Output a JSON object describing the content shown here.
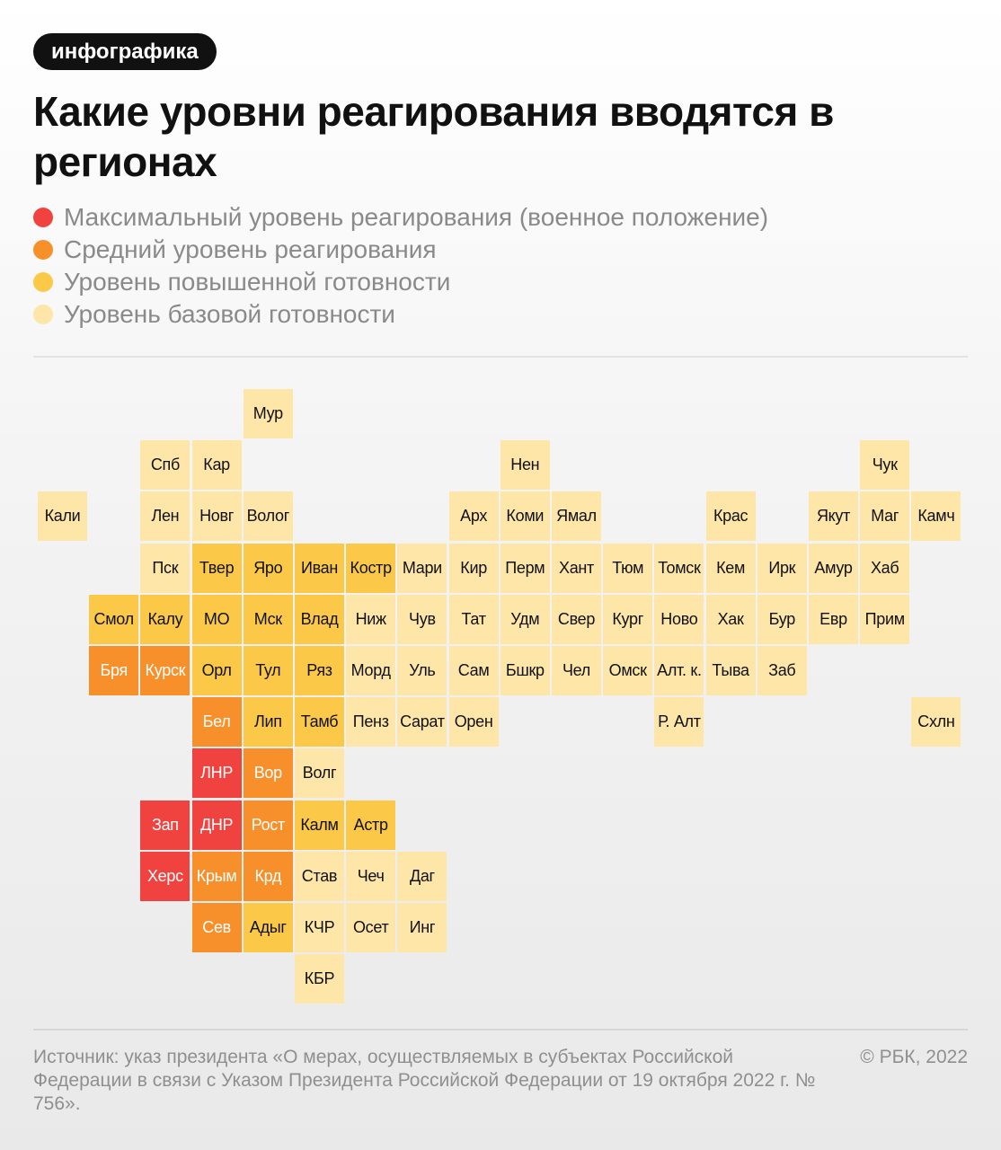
{
  "badge": "инфографика",
  "title": "Какие уровни реагирования вводятся в регионах",
  "legend": [
    {
      "key": "max",
      "label": "Максимальный уровень реагирования (военное положение)",
      "color": "#f0433f"
    },
    {
      "key": "mid",
      "label": "Средний уровень реагирования",
      "color": "#f7902a"
    },
    {
      "key": "high",
      "label": "Уровень повышенной готовности",
      "color": "#fbc947"
    },
    {
      "key": "base",
      "label": "Уровень базовой готовности",
      "color": "#fde6a7"
    }
  ],
  "colors": {
    "max": "#f0433f",
    "mid": "#f7902a",
    "high": "#fbc947",
    "base": "#fde6a7"
  },
  "text_colors": {
    "max": "#ffffff",
    "mid": "#ffffff",
    "high": "#111111",
    "base": "#111111"
  },
  "regions": [
    {
      "label": "Мур",
      "level": "base",
      "row": 0,
      "col": 4
    },
    {
      "label": "Спб",
      "level": "base",
      "row": 1,
      "col": 2
    },
    {
      "label": "Кар",
      "level": "base",
      "row": 1,
      "col": 3
    },
    {
      "label": "Нен",
      "level": "base",
      "row": 1,
      "col": 9
    },
    {
      "label": "Чук",
      "level": "base",
      "row": 1,
      "col": 16
    },
    {
      "label": "Кали",
      "level": "base",
      "row": 2,
      "col": 0
    },
    {
      "label": "Лен",
      "level": "base",
      "row": 2,
      "col": 2
    },
    {
      "label": "Новг",
      "level": "base",
      "row": 2,
      "col": 3
    },
    {
      "label": "Волог",
      "level": "base",
      "row": 2,
      "col": 4
    },
    {
      "label": "Арх",
      "level": "base",
      "row": 2,
      "col": 8
    },
    {
      "label": "Коми",
      "level": "base",
      "row": 2,
      "col": 9
    },
    {
      "label": "Ямал",
      "level": "base",
      "row": 2,
      "col": 10
    },
    {
      "label": "Крас",
      "level": "base",
      "row": 2,
      "col": 13
    },
    {
      "label": "Якут",
      "level": "base",
      "row": 2,
      "col": 15
    },
    {
      "label": "Маг",
      "level": "base",
      "row": 2,
      "col": 16
    },
    {
      "label": "Камч",
      "level": "base",
      "row": 2,
      "col": 17
    },
    {
      "label": "Пск",
      "level": "base",
      "row": 3,
      "col": 2
    },
    {
      "label": "Твер",
      "level": "high",
      "row": 3,
      "col": 3
    },
    {
      "label": "Яро",
      "level": "high",
      "row": 3,
      "col": 4
    },
    {
      "label": "Иван",
      "level": "high",
      "row": 3,
      "col": 5
    },
    {
      "label": "Костр",
      "level": "high",
      "row": 3,
      "col": 6
    },
    {
      "label": "Мари",
      "level": "base",
      "row": 3,
      "col": 7
    },
    {
      "label": "Кир",
      "level": "base",
      "row": 3,
      "col": 8
    },
    {
      "label": "Перм",
      "level": "base",
      "row": 3,
      "col": 9
    },
    {
      "label": "Хант",
      "level": "base",
      "row": 3,
      "col": 10
    },
    {
      "label": "Тюм",
      "level": "base",
      "row": 3,
      "col": 11
    },
    {
      "label": "Томск",
      "level": "base",
      "row": 3,
      "col": 12
    },
    {
      "label": "Кем",
      "level": "base",
      "row": 3,
      "col": 13
    },
    {
      "label": "Ирк",
      "level": "base",
      "row": 3,
      "col": 14
    },
    {
      "label": "Амур",
      "level": "base",
      "row": 3,
      "col": 15
    },
    {
      "label": "Хаб",
      "level": "base",
      "row": 3,
      "col": 16
    },
    {
      "label": "Смол",
      "level": "high",
      "row": 4,
      "col": 1
    },
    {
      "label": "Калу",
      "level": "high",
      "row": 4,
      "col": 2
    },
    {
      "label": "МО",
      "level": "high",
      "row": 4,
      "col": 3
    },
    {
      "label": "Мск",
      "level": "high",
      "row": 4,
      "col": 4
    },
    {
      "label": "Влад",
      "level": "high",
      "row": 4,
      "col": 5
    },
    {
      "label": "Ниж",
      "level": "base",
      "row": 4,
      "col": 6
    },
    {
      "label": "Чув",
      "level": "base",
      "row": 4,
      "col": 7
    },
    {
      "label": "Тат",
      "level": "base",
      "row": 4,
      "col": 8
    },
    {
      "label": "Удм",
      "level": "base",
      "row": 4,
      "col": 9
    },
    {
      "label": "Свер",
      "level": "base",
      "row": 4,
      "col": 10
    },
    {
      "label": "Кург",
      "level": "base",
      "row": 4,
      "col": 11
    },
    {
      "label": "Ново",
      "level": "base",
      "row": 4,
      "col": 12
    },
    {
      "label": "Хак",
      "level": "base",
      "row": 4,
      "col": 13
    },
    {
      "label": "Бур",
      "level": "base",
      "row": 4,
      "col": 14
    },
    {
      "label": "Евр",
      "level": "base",
      "row": 4,
      "col": 15
    },
    {
      "label": "Прим",
      "level": "base",
      "row": 4,
      "col": 16
    },
    {
      "label": "Бря",
      "level": "mid",
      "row": 5,
      "col": 1
    },
    {
      "label": "Курск",
      "level": "mid",
      "row": 5,
      "col": 2
    },
    {
      "label": "Орл",
      "level": "high",
      "row": 5,
      "col": 3
    },
    {
      "label": "Тул",
      "level": "high",
      "row": 5,
      "col": 4
    },
    {
      "label": "Ряз",
      "level": "high",
      "row": 5,
      "col": 5
    },
    {
      "label": "Морд",
      "level": "base",
      "row": 5,
      "col": 6
    },
    {
      "label": "Уль",
      "level": "base",
      "row": 5,
      "col": 7
    },
    {
      "label": "Сам",
      "level": "base",
      "row": 5,
      "col": 8
    },
    {
      "label": "Бшкр",
      "level": "base",
      "row": 5,
      "col": 9
    },
    {
      "label": "Чел",
      "level": "base",
      "row": 5,
      "col": 10
    },
    {
      "label": "Омск",
      "level": "base",
      "row": 5,
      "col": 11
    },
    {
      "label": "Алт. к.",
      "level": "base",
      "row": 5,
      "col": 12
    },
    {
      "label": "Тыва",
      "level": "base",
      "row": 5,
      "col": 13
    },
    {
      "label": "Заб",
      "level": "base",
      "row": 5,
      "col": 14
    },
    {
      "label": "Бел",
      "level": "mid",
      "row": 6,
      "col": 3
    },
    {
      "label": "Лип",
      "level": "high",
      "row": 6,
      "col": 4
    },
    {
      "label": "Тамб",
      "level": "high",
      "row": 6,
      "col": 5
    },
    {
      "label": "Пенз",
      "level": "base",
      "row": 6,
      "col": 6
    },
    {
      "label": "Сарат",
      "level": "base",
      "row": 6,
      "col": 7
    },
    {
      "label": "Орен",
      "level": "base",
      "row": 6,
      "col": 8
    },
    {
      "label": "Р. Алт",
      "level": "base",
      "row": 6,
      "col": 12
    },
    {
      "label": "Схлн",
      "level": "base",
      "row": 6,
      "col": 17
    },
    {
      "label": "ЛНР",
      "level": "max",
      "row": 7,
      "col": 3
    },
    {
      "label": "Вор",
      "level": "mid",
      "row": 7,
      "col": 4
    },
    {
      "label": "Волг",
      "level": "base",
      "row": 7,
      "col": 5
    },
    {
      "label": "Зап",
      "level": "max",
      "row": 8,
      "col": 2
    },
    {
      "label": "ДНР",
      "level": "max",
      "row": 8,
      "col": 3
    },
    {
      "label": "Рост",
      "level": "mid",
      "row": 8,
      "col": 4
    },
    {
      "label": "Калм",
      "level": "high",
      "row": 8,
      "col": 5
    },
    {
      "label": "Астр",
      "level": "high",
      "row": 8,
      "col": 6
    },
    {
      "label": "Херс",
      "level": "max",
      "row": 9,
      "col": 2
    },
    {
      "label": "Крым",
      "level": "mid",
      "row": 9,
      "col": 3
    },
    {
      "label": "Крд",
      "level": "mid",
      "row": 9,
      "col": 4
    },
    {
      "label": "Став",
      "level": "base",
      "row": 9,
      "col": 5
    },
    {
      "label": "Чеч",
      "level": "base",
      "row": 9,
      "col": 6
    },
    {
      "label": "Даг",
      "level": "base",
      "row": 9,
      "col": 7
    },
    {
      "label": "Сев",
      "level": "mid",
      "row": 10,
      "col": 3
    },
    {
      "label": "Адыг",
      "level": "high",
      "row": 10,
      "col": 4
    },
    {
      "label": "КЧР",
      "level": "base",
      "row": 10,
      "col": 5
    },
    {
      "label": "Осет",
      "level": "base",
      "row": 10,
      "col": 6
    },
    {
      "label": "Инг",
      "level": "base",
      "row": 10,
      "col": 7
    },
    {
      "label": "КБР",
      "level": "base",
      "row": 11,
      "col": 5
    }
  ],
  "footer": {
    "source": "Источник: указ президента «О мерах, осуществляемых в субъектах Российской Федерации в связи с Указом Президента Российской Федерации от 19 октября 2022 г. № 756».",
    "copyright": "© РБК, 2022"
  }
}
